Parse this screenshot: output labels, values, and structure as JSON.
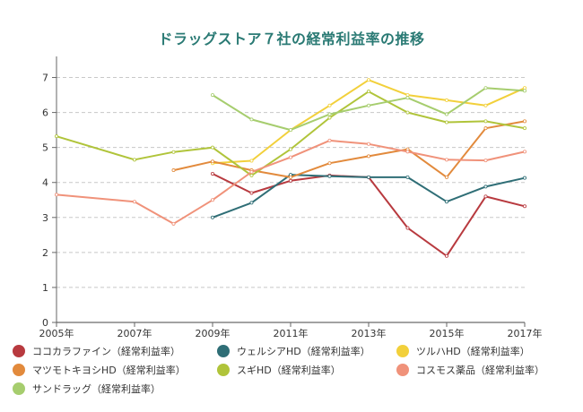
{
  "chart_data": {
    "type": "line",
    "title": "ドラッグストア７社の経常利益率の推移",
    "x": [
      "2005年",
      "2006年",
      "2007年",
      "2008年",
      "2009年",
      "2010年",
      "2011年",
      "2012年",
      "2013年",
      "2014年",
      "2015年",
      "2016年",
      "2017年"
    ],
    "x_tick_labels": [
      "2005年",
      "2007年",
      "2009年",
      "2011年",
      "2013年",
      "2015年",
      "2017年"
    ],
    "y_tick_labels": [
      "0",
      "1",
      "2",
      "3",
      "4",
      "5",
      "6",
      "7"
    ],
    "ylim": [
      0,
      7.5
    ],
    "grid": "horizontal-dashed",
    "legend_position": "bottom",
    "series": [
      {
        "name": "ココカラファイン（経常利益率）",
        "color": "#b83a3f",
        "values": [
          null,
          null,
          null,
          null,
          4.25,
          3.7,
          4.05,
          4.2,
          4.15,
          2.7,
          1.9,
          3.6,
          3.32
        ]
      },
      {
        "name": "ウェルシアHD（経常利益率）",
        "color": "#2f6e76",
        "values": [
          null,
          null,
          null,
          null,
          3.0,
          3.42,
          4.22,
          4.18,
          4.15,
          4.15,
          3.45,
          3.88,
          4.13
        ]
      },
      {
        "name": "ツルハHD（経常利益率）",
        "color": "#f2d03b",
        "values": [
          null,
          null,
          null,
          null,
          4.55,
          4.62,
          5.5,
          6.2,
          6.93,
          6.5,
          6.35,
          6.2,
          6.7
        ]
      },
      {
        "name": "マツモトキヨシHD（経常利益率）",
        "color": "#e28a3c",
        "values": [
          null,
          null,
          null,
          4.35,
          4.6,
          4.35,
          4.15,
          4.55,
          4.75,
          4.95,
          4.15,
          5.55,
          5.75
        ]
      },
      {
        "name": "スギHD（経常利益率）",
        "color": "#b0c43a",
        "values": [
          5.32,
          null,
          4.65,
          4.87,
          5.0,
          4.2,
          4.95,
          5.85,
          6.6,
          6.0,
          5.72,
          5.75,
          5.55
        ]
      },
      {
        "name": "コスモス薬品（経常利益率）",
        "color": "#f0927a",
        "values": [
          3.65,
          null,
          3.45,
          2.82,
          3.5,
          4.3,
          4.72,
          5.2,
          5.1,
          4.88,
          4.65,
          4.63,
          4.88
        ]
      },
      {
        "name": "サンドラッグ（経常利益率）",
        "color": "#a6cd6e",
        "values": [
          null,
          null,
          null,
          null,
          6.5,
          5.8,
          5.5,
          5.95,
          6.2,
          6.42,
          5.95,
          6.7,
          6.62
        ]
      }
    ]
  }
}
